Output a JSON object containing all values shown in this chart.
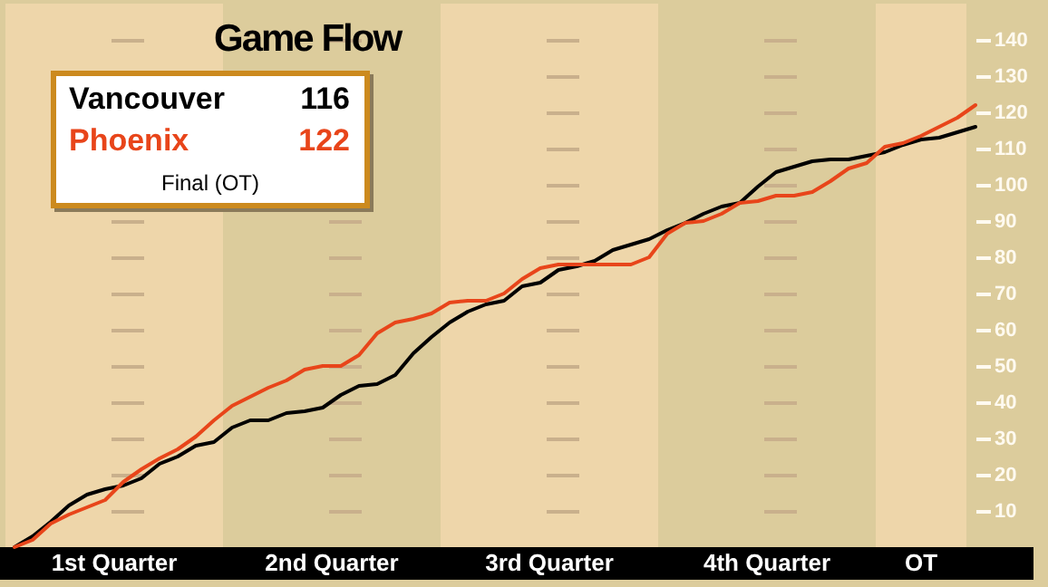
{
  "chart_data": {
    "type": "line",
    "title": "Game Flow",
    "annotations": [
      "116",
      "122",
      "Final (OT)",
      "1st Quarter",
      "2nd Quarter",
      "3rd Quarter",
      "4th Quarter",
      "OT"
    ],
    "grid": "y",
    "categories": [
      null,
      null,
      null,
      null,
      null,
      null,
      null,
      null,
      null,
      null,
      null,
      null,
      null,
      null,
      null,
      null,
      null,
      null,
      null,
      null,
      null,
      null,
      null,
      null,
      null,
      null,
      null,
      null,
      null,
      null,
      null,
      null,
      null,
      null,
      null,
      null,
      null,
      null,
      null,
      null,
      null,
      null,
      null,
      null,
      null,
      null,
      null,
      null,
      null,
      null,
      null,
      null,
      null,
      null
    ],
    "ylim": [
      0,
      150
    ],
    "yticks": [
      10,
      20,
      30,
      40,
      50,
      60,
      70,
      80,
      90,
      100,
      110,
      120,
      130,
      140
    ],
    "series": [
      {
        "name": "Vancouver",
        "color": "#000000",
        "values": [
          0,
          3,
          7,
          11.5,
          14.5,
          16,
          17,
          19,
          23,
          25,
          28,
          29,
          33,
          35,
          35,
          37,
          37.5,
          38.5,
          42,
          44.5,
          45,
          47.5,
          53.5,
          58,
          62,
          65,
          67,
          68,
          72,
          73,
          76.5,
          77.5,
          79,
          82,
          83.5,
          85,
          87.5,
          89.5,
          92,
          94,
          95,
          99.5,
          103.5,
          105,
          106.5,
          107,
          107,
          108,
          109,
          111,
          112.5,
          113,
          114.5,
          116
        ]
      },
      {
        "name": "Phoenix",
        "color": "#e8451a",
        "values": [
          0,
          2,
          6.5,
          9,
          11,
          13,
          18,
          21.5,
          24.5,
          27,
          30.5,
          35,
          39,
          41.5,
          44,
          46,
          49,
          50,
          50,
          53,
          59,
          62,
          63,
          64.5,
          67.5,
          68,
          68,
          70,
          74,
          77,
          78,
          78,
          78,
          78,
          78,
          80,
          86.5,
          89.5,
          90,
          92,
          95,
          95.5,
          97,
          97,
          98,
          101,
          104.5,
          106,
          110.5,
          111.5,
          113.5,
          116,
          118.5,
          122
        ]
      }
    ]
  }
}
